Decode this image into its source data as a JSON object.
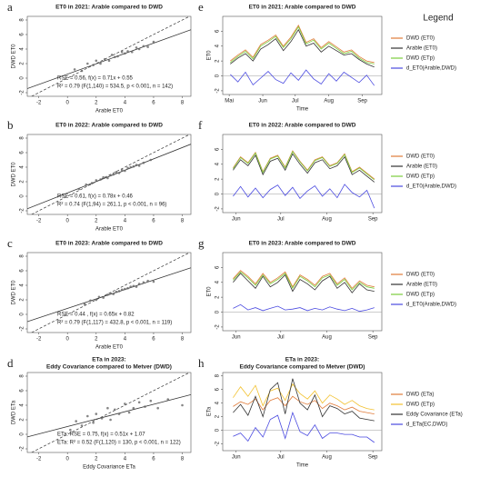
{
  "legend_title": "Legend",
  "chart_data": [
    {
      "type": "scatter",
      "label": "a",
      "title": "ET0 in 2021: Arable compared to DWD",
      "xlabel": "Arable ET0",
      "ylabel": "DWD ET0",
      "x": [
        0.5,
        1.0,
        1.4,
        1.8,
        2.0,
        2.3,
        2.6,
        2.9,
        3.1,
        3.3,
        3.5,
        3.8,
        4.0,
        4.2,
        4.5,
        4.8,
        5.0,
        5.3,
        5.6,
        6.0
      ],
      "values": [
        1.2,
        1.0,
        2.0,
        1.8,
        2.4,
        2.0,
        2.6,
        2.4,
        3.2,
        2.9,
        3.0,
        3.6,
        3.4,
        3.7,
        3.6,
        4.2,
        4.0,
        4.4,
        4.3,
        5.0
      ],
      "color": "#666666",
      "fit": {
        "slope": 0.71,
        "intercept": 0.55
      },
      "annotations": [
        "RSE = 0.56, f(x) = 0.71x + 0.55",
        "R² = 0.79 (F(1,140) = 534.5, p < 0.001, n = 142)"
      ],
      "xlim": [
        -2.8,
        8.6
      ],
      "ylim": [
        -2.5,
        8.5
      ],
      "xticks": [
        -2,
        0,
        2,
        4,
        6,
        8
      ],
      "yticks": [
        -2,
        0,
        2,
        4,
        6,
        8
      ]
    },
    {
      "type": "scatter",
      "label": "b",
      "title": "ET0 in 2022: Arable compared to DWD",
      "xlabel": "Arable ET0",
      "ylabel": "DWD ET0",
      "x": [
        0.8,
        1.3,
        1.7,
        2.0,
        2.3,
        2.5,
        2.8,
        3.0,
        3.2,
        3.4,
        3.6,
        3.8,
        4.0,
        4.2,
        4.4,
        4.6,
        4.8,
        5.0,
        5.3,
        5.8
      ],
      "values": [
        1.0,
        1.6,
        1.8,
        2.2,
        2.3,
        2.6,
        2.5,
        2.9,
        3.0,
        3.3,
        3.2,
        3.6,
        3.5,
        3.9,
        4.0,
        4.1,
        4.3,
        4.2,
        4.6,
        5.0
      ],
      "color": "#666666",
      "fit": {
        "slope": 0.78,
        "intercept": 0.46
      },
      "annotations": [
        "RSE = 0.61, f(x) = 0.78x + 0.46",
        "R² = 0.74 (F(1,94) = 261.1, p < 0.001, n = 96)"
      ],
      "xlim": [
        -2.8,
        8.6
      ],
      "ylim": [
        -2.5,
        8.5
      ],
      "xticks": [
        -2,
        0,
        2,
        4,
        6,
        8
      ],
      "yticks": [
        -2,
        0,
        2,
        4,
        6,
        8
      ]
    },
    {
      "type": "scatter",
      "label": "c",
      "title": "ET0 in 2023: Arable compared to DWD",
      "xlabel": "Arable ET0",
      "ylabel": "DWD ET0",
      "x": [
        1.2,
        1.6,
        2.0,
        2.2,
        2.5,
        2.8,
        3.0,
        3.2,
        3.4,
        3.6,
        3.8,
        4.0,
        4.2,
        4.4,
        4.6,
        4.8,
        5.0,
        5.3,
        5.6,
        6.0
      ],
      "values": [
        1.4,
        1.9,
        2.0,
        2.4,
        2.3,
        2.7,
        2.9,
        2.8,
        3.1,
        3.2,
        3.4,
        3.5,
        3.6,
        3.8,
        3.9,
        3.8,
        4.2,
        4.4,
        4.6,
        4.5
      ],
      "color": "#666666",
      "fit": {
        "slope": 0.65,
        "intercept": 0.82
      },
      "annotations": [
        "RSE = 0.44 , f(x) = 0.65x + 0.82",
        "R² = 0.79 (F(1,117) = 432.8, p < 0.001, n = 119)"
      ],
      "xlim": [
        -2.8,
        8.6
      ],
      "ylim": [
        -2.5,
        8.5
      ],
      "xticks": [
        -2,
        0,
        2,
        4,
        6,
        8
      ],
      "yticks": [
        -2,
        0,
        2,
        4,
        6,
        8
      ]
    },
    {
      "type": "scatter",
      "label": "d",
      "title": "ETa in 2023:",
      "subtitle": "Eddy Covariance compared to Metver (DWD)",
      "xlabel": "Eddy Covariance ETa",
      "ylabel": "DWD ETa",
      "x": [
        0.2,
        0.6,
        1.0,
        1.4,
        1.8,
        2.0,
        2.4,
        2.8,
        3.0,
        3.3,
        3.6,
        4.0,
        4.3,
        4.6,
        5.0,
        5.4,
        5.8,
        6.3,
        7.0,
        8.0
      ],
      "values": [
        0.6,
        1.8,
        1.2,
        2.5,
        1.6,
        2.8,
        2.2,
        3.6,
        2.0,
        3.4,
        2.8,
        4.2,
        3.0,
        3.6,
        4.4,
        3.8,
        4.6,
        3.6,
        4.8,
        4.0
      ],
      "color": "#666666",
      "fit": {
        "slope": 0.51,
        "intercept": 1.07
      },
      "annotations": [
        "ETa: RSE = 0.75, f(x) = 0.51x + 1.07",
        "ETa: R² = 0.52 (F(1,120) = 130, p < 0.001, n = 122)"
      ],
      "xlim": [
        -2.8,
        8.6
      ],
      "ylim": [
        -2.5,
        8.5
      ],
      "xticks": [
        -2,
        0,
        2,
        4,
        6,
        8
      ],
      "yticks": [
        -2,
        0,
        2,
        4,
        6,
        8
      ]
    },
    {
      "type": "line",
      "label": "e",
      "title": "ET0 in 2021: Arable compared to DWD",
      "xlabel": "Time",
      "ylabel": "ET0",
      "x": [
        122,
        129,
        136,
        143,
        150,
        157,
        164,
        171,
        178,
        185,
        192,
        199,
        206,
        213,
        220,
        227,
        234,
        241,
        248,
        255
      ],
      "series": [
        {
          "name": "DWD (ET0)",
          "color": "#e07b39",
          "values": [
            2.0,
            2.8,
            3.5,
            2.5,
            4.2,
            4.8,
            5.5,
            4.0,
            5.2,
            6.8,
            4.5,
            5.0,
            3.8,
            4.6,
            3.9,
            3.2,
            3.5,
            2.6,
            2.0,
            1.8
          ]
        },
        {
          "name": "Arable (ET0)",
          "color": "#333333",
          "values": [
            1.6,
            2.4,
            3.0,
            2.0,
            3.6,
            4.2,
            5.0,
            3.4,
            4.6,
            6.2,
            4.0,
            4.4,
            3.2,
            4.0,
            3.4,
            2.8,
            3.0,
            2.2,
            1.6,
            1.2
          ]
        },
        {
          "name": "DWD (ETp)",
          "color": "#7ccd3c",
          "values": [
            1.8,
            2.6,
            3.3,
            2.3,
            4.0,
            4.6,
            5.3,
            3.8,
            5.0,
            6.6,
            4.3,
            4.8,
            3.6,
            4.4,
            3.7,
            3.0,
            3.3,
            2.4,
            1.8,
            1.6
          ]
        },
        {
          "name": "d_ET0(Arable,DWD)",
          "color": "#4a4ae0",
          "values": [
            0.2,
            -0.8,
            0.5,
            -1.2,
            -0.3,
            0.6,
            -0.5,
            -1.0,
            0.4,
            -0.6,
            0.8,
            -0.4,
            -1.1,
            0.3,
            -0.7,
            0.5,
            -0.2,
            -0.9,
            0.1,
            -1.3
          ]
        }
      ],
      "xlim": [
        115,
        262
      ],
      "ylim": [
        -2.5,
        8
      ],
      "xticks": [
        {
          "value": 121,
          "label": "Mai"
        },
        {
          "value": 152,
          "label": "Jun"
        },
        {
          "value": 182,
          "label": "Jul"
        },
        {
          "value": 213,
          "label": "Aug"
        },
        {
          "value": 244,
          "label": "Sep"
        }
      ],
      "yticks": [
        -2,
        0,
        2,
        4,
        6
      ]
    },
    {
      "type": "line",
      "label": "f",
      "title": "ET0 in 2022: Arable compared to DWD",
      "x": [
        150,
        155,
        160,
        165,
        170,
        175,
        180,
        185,
        190,
        195,
        200,
        205,
        210,
        215,
        220,
        225,
        230,
        235,
        240,
        245
      ],
      "series": [
        {
          "name": "DWD (ET0)",
          "color": "#e07b39",
          "values": [
            3.5,
            5.0,
            4.2,
            5.6,
            3.0,
            4.8,
            5.2,
            3.6,
            5.8,
            4.4,
            3.2,
            4.6,
            5.0,
            3.8,
            4.2,
            5.4,
            3.0,
            3.6,
            2.8,
            2.0
          ]
        },
        {
          "name": "Arable (ET0)",
          "color": "#333333",
          "values": [
            3.2,
            4.6,
            3.8,
            5.2,
            2.6,
            4.4,
            4.8,
            3.2,
            5.4,
            4.0,
            2.8,
            4.2,
            4.6,
            3.4,
            3.8,
            5.0,
            2.6,
            3.2,
            2.4,
            1.6
          ]
        },
        {
          "name": "DWD (ETp)",
          "color": "#7ccd3c",
          "values": [
            3.4,
            4.9,
            4.1,
            5.5,
            2.9,
            4.7,
            5.1,
            3.5,
            5.7,
            4.3,
            3.1,
            4.5,
            4.9,
            3.7,
            4.1,
            5.3,
            2.9,
            3.5,
            2.7,
            1.9
          ]
        },
        {
          "name": "d_ET0(Arable,DWD)",
          "color": "#4a4ae0",
          "values": [
            -0.3,
            1.0,
            -0.4,
            0.8,
            -0.5,
            0.6,
            1.2,
            -0.2,
            0.9,
            -0.6,
            0.4,
            1.1,
            -0.3,
            0.7,
            -0.5,
            1.3,
            0.2,
            -0.4,
            0.5,
            -1.9
          ]
        }
      ],
      "xlim": [
        143,
        250
      ],
      "ylim": [
        -2.5,
        8
      ],
      "xticks": [
        {
          "value": 152,
          "label": "Jun"
        },
        {
          "value": 182,
          "label": "Jul"
        },
        {
          "value": 213,
          "label": "Aug"
        },
        {
          "value": 244,
          "label": "Sep"
        }
      ],
      "yticks": [
        -2,
        0,
        2,
        4,
        6
      ]
    },
    {
      "type": "line",
      "label": "g",
      "title": "ET0 in 2023: Arable compared to DWD",
      "ylabel": "ET0",
      "x": [
        150,
        155,
        160,
        165,
        170,
        175,
        180,
        185,
        190,
        195,
        200,
        205,
        210,
        215,
        220,
        225,
        230,
        235,
        240,
        245
      ],
      "series": [
        {
          "name": "DWD (ET0)",
          "color": "#e07b39",
          "values": [
            4.5,
            5.6,
            4.8,
            3.8,
            5.2,
            4.0,
            4.6,
            5.4,
            3.4,
            5.0,
            4.4,
            3.6,
            4.8,
            5.2,
            3.8,
            4.6,
            3.2,
            4.2,
            3.6,
            3.4
          ]
        },
        {
          "name": "Arable (ET0)",
          "color": "#333333",
          "values": [
            4.0,
            5.2,
            4.2,
            3.2,
            4.8,
            3.4,
            4.0,
            5.0,
            2.8,
            4.4,
            3.8,
            3.0,
            4.2,
            4.8,
            3.2,
            4.0,
            2.6,
            3.8,
            3.0,
            2.8
          ]
        },
        {
          "name": "DWD (ETp)",
          "color": "#7ccd3c",
          "values": [
            4.3,
            5.4,
            4.6,
            3.6,
            5.0,
            3.8,
            4.4,
            5.2,
            3.2,
            4.8,
            4.2,
            3.4,
            4.6,
            5.0,
            3.6,
            4.4,
            3.0,
            4.0,
            3.4,
            3.2
          ]
        },
        {
          "name": "d_ET0(Arable,DWD)",
          "color": "#4a4ae0",
          "values": [
            0.5,
            1.0,
            0.3,
            0.6,
            0.2,
            0.5,
            0.8,
            0.3,
            0.4,
            0.6,
            0.2,
            0.5,
            0.3,
            0.7,
            0.4,
            0.2,
            0.5,
            0.1,
            0.3,
            0.6
          ]
        }
      ],
      "xlim": [
        143,
        250
      ],
      "ylim": [
        -2.5,
        8
      ],
      "xticks": [
        {
          "value": 152,
          "label": "Jun"
        },
        {
          "value": 182,
          "label": "Jul"
        },
        {
          "value": 213,
          "label": "Aug"
        },
        {
          "value": 244,
          "label": "Sep"
        }
      ],
      "yticks": [
        -2,
        0,
        2,
        4,
        6
      ]
    },
    {
      "type": "line",
      "label": "h",
      "title": "ETa in 2023:",
      "subtitle": "Eddy Covariance compared to Metver (DWD)",
      "xlabel": "Time",
      "ylabel": "ETa",
      "x": [
        150,
        155,
        160,
        165,
        170,
        175,
        180,
        185,
        190,
        195,
        200,
        205,
        210,
        215,
        220,
        225,
        230,
        235,
        240,
        245
      ],
      "series": [
        {
          "name": "DWD (ETa)",
          "color": "#e07b39",
          "values": [
            3.5,
            4.2,
            3.8,
            4.6,
            3.0,
            4.4,
            4.8,
            3.6,
            5.0,
            4.2,
            3.8,
            4.4,
            3.2,
            4.0,
            3.6,
            3.0,
            3.4,
            2.8,
            2.6,
            2.4
          ]
        },
        {
          "name": "DWD (ETp)",
          "color": "#f2c12e",
          "values": [
            4.8,
            6.4,
            5.0,
            6.6,
            3.6,
            5.8,
            6.2,
            4.4,
            6.8,
            5.4,
            4.6,
            5.8,
            4.0,
            5.2,
            4.6,
            3.8,
            4.4,
            3.6,
            3.2,
            3.0
          ]
        },
        {
          "name": "Eddy Covariance (ETa)",
          "color": "#333333",
          "values": [
            2.6,
            3.8,
            2.2,
            5.0,
            2.0,
            6.0,
            7.0,
            2.4,
            7.6,
            4.0,
            3.0,
            5.2,
            2.0,
            3.6,
            3.2,
            2.4,
            2.8,
            1.8,
            1.6,
            1.4
          ]
        },
        {
          "name": "d_ETa(EC,DWD)",
          "color": "#4a4ae0",
          "values": [
            -0.9,
            -0.4,
            -1.6,
            0.4,
            -1.0,
            1.6,
            2.2,
            -1.2,
            2.6,
            -0.2,
            -0.8,
            0.8,
            -1.2,
            -0.4,
            -0.4,
            -0.6,
            -0.6,
            -1.0,
            -1.0,
            -1.8
          ]
        }
      ],
      "xlim": [
        143,
        250
      ],
      "ylim": [
        -3,
        8.5
      ],
      "xticks": [
        {
          "value": 152,
          "label": "Jun"
        },
        {
          "value": 182,
          "label": "Jul"
        },
        {
          "value": 213,
          "label": "Aug"
        },
        {
          "value": 244,
          "label": "Sep"
        }
      ],
      "yticks": [
        -2,
        0,
        2,
        4,
        6,
        8
      ]
    }
  ]
}
